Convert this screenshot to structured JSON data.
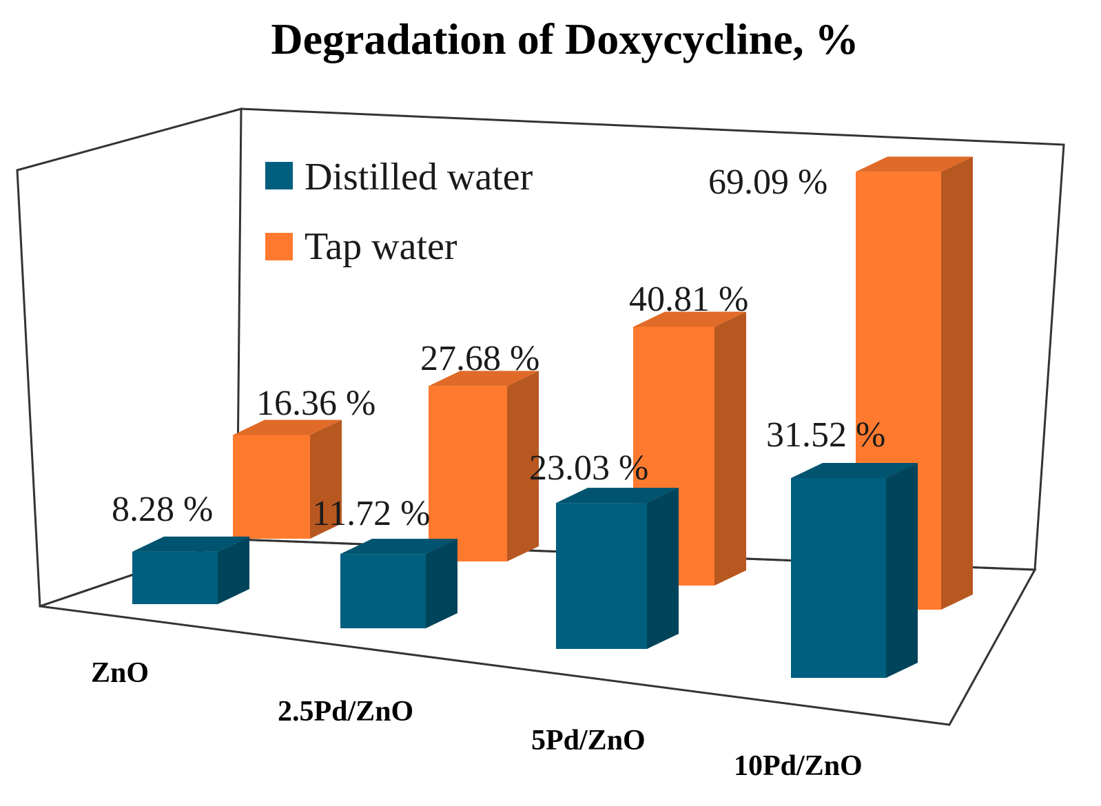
{
  "chart_data": {
    "type": "bar",
    "title": "Degradation of Doxycycline, %",
    "categories": [
      "ZnO",
      "2.5Pd/ZnO",
      "5Pd/ZnO",
      "10Pd/ZnO"
    ],
    "series": [
      {
        "name": "Distilled water",
        "values": [
          8.28,
          11.72,
          23.03,
          31.52
        ],
        "labels": [
          "8.28 %",
          "11.72 %",
          "23.03 %",
          "31.52 %"
        ],
        "color": "#005f7f"
      },
      {
        "name": "Tap water",
        "values": [
          16.36,
          27.68,
          40.81,
          69.09
        ],
        "labels": [
          "16.36 %",
          "27.68 %",
          "40.81 %",
          "69.09 %"
        ],
        "color": "#ff7a2e"
      }
    ],
    "legend_position": "top-left",
    "xlabel": "",
    "ylabel": "",
    "ylim": [
      0,
      75
    ]
  }
}
